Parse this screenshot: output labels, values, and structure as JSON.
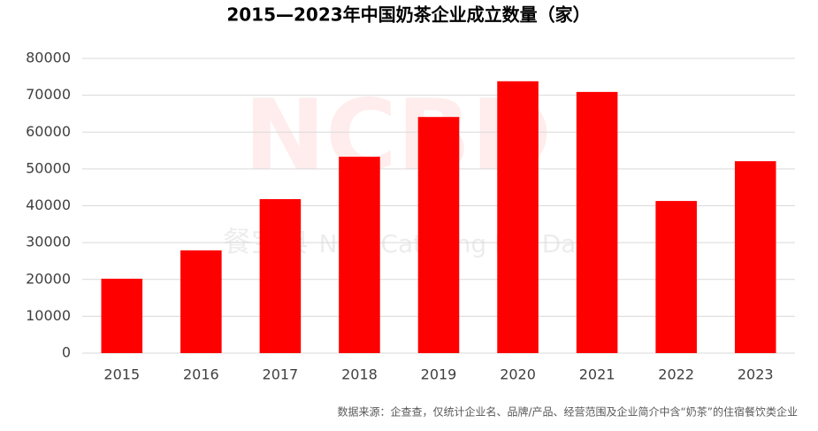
{
  "chart_data": {
    "type": "bar",
    "title": "2015—2023年中国奶茶企业成立数量（家）",
    "categories": [
      "2015",
      "2016",
      "2017",
      "2018",
      "2019",
      "2020",
      "2021",
      "2022",
      "2023"
    ],
    "values": [
      20200,
      27900,
      41800,
      53300,
      64100,
      73800,
      70900,
      41300,
      52100
    ],
    "color": "#ff0000",
    "ylim": [
      0,
      80000
    ],
    "yticks": [
      0,
      10000,
      20000,
      30000,
      40000,
      50000,
      60000,
      70000,
      80000
    ],
    "grid": true,
    "watermark": {
      "logo": "NCBD",
      "brand": "餐宝典",
      "tagline": "New Catering Big Data"
    },
    "source": "数据来源：企查查，仅统计企业名、品牌/产品、经营范围及企业简介中含“奶茶”的住宿餐饮类企业"
  }
}
